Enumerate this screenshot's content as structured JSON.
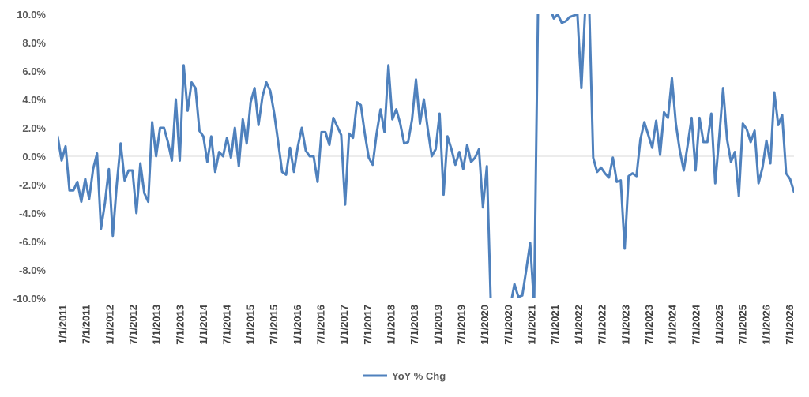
{
  "chart_data": {
    "type": "line",
    "title": "",
    "xlabel": "",
    "ylabel": "",
    "ylim": [
      -10,
      10
    ],
    "y_ticks": [
      "10.0%",
      "8.0%",
      "6.0%",
      "4.0%",
      "2.0%",
      "0.0%",
      "-2.0%",
      "-4.0%",
      "-6.0%",
      "-8.0%",
      "-10.0%"
    ],
    "y_tick_values": [
      10,
      8,
      6,
      4,
      2,
      0,
      -2,
      -4,
      -6,
      -8,
      -10
    ],
    "x_ticks": [
      "1/1/2011",
      "7/1/2011",
      "1/1/2012",
      "7/1/2012",
      "1/1/2013",
      "7/1/2013",
      "1/1/2014",
      "7/1/2014",
      "1/1/2015",
      "7/1/2015",
      "1/1/2016",
      "7/1/2016",
      "1/1/2017",
      "7/1/2017",
      "1/1/2018",
      "7/1/2018",
      "1/1/2019",
      "7/1/2019",
      "1/1/2020",
      "7/1/2020",
      "1/1/2021",
      "7/1/2021",
      "1/1/2022",
      "7/1/2022",
      "1/1/2023",
      "7/1/2023",
      "1/1/2024",
      "7/1/2024",
      "1/1/2025",
      "7/1/2025",
      "1/1/2026",
      "7/1/2026"
    ],
    "grid": false,
    "zero_line": true,
    "legend": "bottom",
    "line_color": "#4f81bd",
    "series": [
      {
        "name": "YoY % Chg",
        "values": [
          1.4,
          -0.3,
          0.7,
          -2.4,
          -2.4,
          -1.8,
          -3.2,
          -1.6,
          -3.0,
          -0.9,
          0.2,
          -5.1,
          -3.3,
          -0.9,
          -5.6,
          -2.0,
          0.9,
          -1.7,
          -1.0,
          -1.0,
          -4.0,
          -0.5,
          -2.6,
          -3.2,
          2.4,
          0.0,
          2.0,
          2.0,
          1.0,
          -0.3,
          4.0,
          -0.3,
          6.4,
          3.2,
          5.2,
          4.8,
          1.8,
          1.4,
          -0.4,
          1.4,
          -1.1,
          0.3,
          0.0,
          1.3,
          -0.1,
          2.0,
          -0.7,
          2.6,
          0.9,
          3.8,
          4.8,
          2.2,
          4.2,
          5.2,
          4.6,
          3.0,
          1.0,
          -1.1,
          -1.3,
          0.6,
          -1.1,
          0.7,
          2.0,
          0.4,
          0.0,
          0.0,
          -1.8,
          1.7,
          1.7,
          0.8,
          2.7,
          2.1,
          1.5,
          -3.4,
          1.6,
          1.3,
          3.8,
          3.6,
          1.6,
          -0.1,
          -0.6,
          1.6,
          3.3,
          1.7,
          6.4,
          2.6,
          3.3,
          2.3,
          0.9,
          1.0,
          2.6,
          5.4,
          2.3,
          4.0,
          1.9,
          0.0,
          0.5,
          3.0,
          -2.7,
          1.4,
          0.5,
          -0.6,
          0.3,
          -0.9,
          0.8,
          -0.4,
          -0.1,
          0.5,
          -3.6,
          -0.7,
          -10.4,
          -10.5,
          -10.5,
          -10.5,
          -10.5,
          -10.5,
          -9.0,
          -9.9,
          -9.8,
          -8.0,
          -6.1,
          -10.5,
          10.5,
          10.5,
          10.5,
          10.5,
          9.7,
          10.0,
          9.4,
          9.5,
          9.8,
          9.9,
          10.0,
          4.8,
          10.5,
          10.5,
          -0.1,
          -1.1,
          -0.8,
          -1.2,
          -1.5,
          -0.1,
          -1.8,
          -1.7,
          -6.5,
          -1.4,
          -1.2,
          -1.4,
          1.2,
          2.4,
          1.5,
          0.6,
          2.5,
          0.1,
          3.1,
          2.7,
          5.5,
          2.3,
          0.4,
          -1.0,
          0.8,
          2.7,
          -1.0,
          2.7,
          1.0,
          1.0,
          3.0,
          -1.9,
          1.3,
          4.8,
          1.2,
          -0.4,
          0.3,
          -2.8,
          2.3,
          1.9,
          1.0,
          1.8,
          -1.9,
          -0.8,
          1.1,
          -0.5,
          4.5,
          2.2,
          2.9,
          -1.2,
          -1.6,
          -2.5
        ]
      }
    ]
  }
}
